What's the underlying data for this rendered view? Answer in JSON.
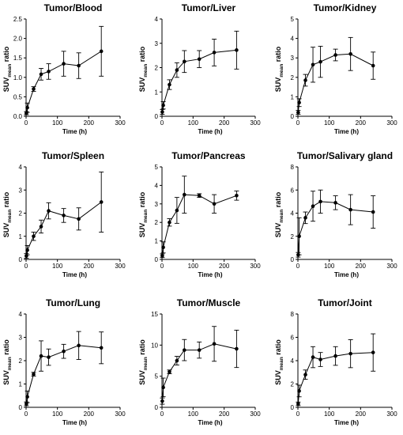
{
  "chart_data": [
    {
      "type": "line",
      "title": "Tumor/Blood",
      "xlabel": "Time (h)",
      "ylabel_main": "SUV",
      "ylabel_sub": "mean",
      "ylabel_tail": " ratio",
      "xlim": [
        0,
        300
      ],
      "ylim": [
        0,
        2.5
      ],
      "xticks": [
        "0",
        "100",
        "200",
        "300"
      ],
      "yticks": [
        "0.0",
        "0.5",
        "1.0",
        "1.5",
        "2.0",
        "2.5"
      ],
      "x": [
        1,
        4,
        24,
        48,
        72,
        120,
        168,
        240
      ],
      "y": [
        0.08,
        0.22,
        0.7,
        1.08,
        1.15,
        1.35,
        1.3,
        1.67
      ],
      "err": [
        0.04,
        0.12,
        0.06,
        0.15,
        0.2,
        0.32,
        0.33,
        0.64
      ]
    },
    {
      "type": "line",
      "title": "Tumor/Liver",
      "xlabel": "Time (h)",
      "ylabel_main": "SUV",
      "ylabel_sub": "mean",
      "ylabel_tail": " ratio",
      "xlim": [
        0,
        300
      ],
      "ylim": [
        0,
        4
      ],
      "xticks": [
        "0",
        "100",
        "200",
        "300"
      ],
      "yticks": [
        "0",
        "1",
        "2",
        "3",
        "4"
      ],
      "x": [
        1,
        4,
        24,
        48,
        72,
        120,
        168,
        240
      ],
      "y": [
        0.18,
        0.45,
        1.3,
        1.9,
        2.25,
        2.35,
        2.62,
        2.72
      ],
      "err": [
        0.1,
        0.15,
        0.2,
        0.3,
        0.45,
        0.35,
        0.55,
        0.78
      ]
    },
    {
      "type": "line",
      "title": "Tumor/Kidney",
      "xlabel": "Time (h)",
      "ylabel_main": "SUV",
      "ylabel_sub": "mean",
      "ylabel_tail": " ratio",
      "xlim": [
        0,
        300
      ],
      "ylim": [
        0,
        5
      ],
      "xticks": [
        "0",
        "100",
        "200",
        "300"
      ],
      "yticks": [
        "0",
        "1",
        "2",
        "3",
        "4",
        "5"
      ],
      "x": [
        1,
        4,
        24,
        48,
        72,
        120,
        168,
        240
      ],
      "y": [
        0.2,
        0.7,
        1.85,
        2.65,
        2.8,
        3.15,
        3.2,
        2.6
      ],
      "err": [
        0.1,
        0.2,
        0.3,
        0.9,
        0.8,
        0.3,
        0.85,
        0.7
      ]
    },
    {
      "type": "line",
      "title": "Tumor/Spleen",
      "xlabel": "Time (h)",
      "ylabel_main": "SUV",
      "ylabel_sub": "mean",
      "ylabel_tail": " ratio",
      "xlim": [
        0,
        300
      ],
      "ylim": [
        0,
        4
      ],
      "xticks": [
        "0",
        "100",
        "200",
        "300"
      ],
      "yticks": [
        "0",
        "1",
        "2",
        "3",
        "4"
      ],
      "x": [
        1,
        4,
        24,
        48,
        72,
        120,
        168,
        240
      ],
      "y": [
        0.15,
        0.4,
        1.0,
        1.42,
        2.1,
        1.9,
        1.75,
        2.48
      ],
      "err": [
        0.1,
        0.2,
        0.18,
        0.28,
        0.35,
        0.3,
        0.48,
        1.3
      ]
    },
    {
      "type": "line",
      "title": "Tumor/Pancreas",
      "xlabel": "Time (h)",
      "ylabel_main": "SUV",
      "ylabel_sub": "mean",
      "ylabel_tail": " ratio",
      "xlim": [
        0,
        300
      ],
      "ylim": [
        0,
        5
      ],
      "xticks": [
        "0",
        "100",
        "200",
        "300"
      ],
      "yticks": [
        "0",
        "1",
        "2",
        "3",
        "4",
        "5"
      ],
      "x": [
        1,
        4,
        24,
        48,
        72,
        120,
        168,
        240
      ],
      "y": [
        0.2,
        0.65,
        2.0,
        2.65,
        3.5,
        3.45,
        3.0,
        3.45
      ],
      "err": [
        0.1,
        0.3,
        0.2,
        0.7,
        1.0,
        0.1,
        0.5,
        0.25
      ]
    },
    {
      "type": "line",
      "title": "Tumor/Salivary gland",
      "xlabel": "Time (h)",
      "ylabel_main": "SUV",
      "ylabel_sub": "mean",
      "ylabel_tail": " ratio",
      "xlim": [
        0,
        300
      ],
      "ylim": [
        0,
        8
      ],
      "xticks": [
        "0",
        "100",
        "200",
        "300"
      ],
      "yticks": [
        "0",
        "2",
        "4",
        "6",
        "8"
      ],
      "x": [
        1,
        4,
        24,
        48,
        72,
        120,
        168,
        240
      ],
      "y": [
        0.4,
        2.0,
        3.6,
        4.6,
        5.0,
        4.9,
        4.3,
        4.1
      ],
      "err": [
        0.2,
        1.6,
        0.5,
        1.3,
        1.0,
        0.6,
        1.3,
        1.4
      ]
    },
    {
      "type": "line",
      "title": "Tumor/Lung",
      "xlabel": "Time (h)",
      "ylabel_main": "SUV",
      "ylabel_sub": "mean",
      "ylabel_tail": " ratio",
      "xlim": [
        0,
        300
      ],
      "ylim": [
        0,
        4
      ],
      "xticks": [
        "0",
        "100",
        "200",
        "300"
      ],
      "yticks": [
        "0",
        "1",
        "2",
        "3",
        "4"
      ],
      "x": [
        1,
        4,
        24,
        48,
        72,
        120,
        168,
        240
      ],
      "y": [
        0.15,
        0.45,
        1.42,
        2.2,
        2.15,
        2.4,
        2.65,
        2.55
      ],
      "err": [
        0.08,
        0.25,
        0.08,
        0.65,
        0.35,
        0.3,
        0.6,
        0.68
      ]
    },
    {
      "type": "line",
      "title": "Tumor/Muscle",
      "xlabel": "Time (h)",
      "ylabel_main": "SUV",
      "ylabel_sub": "mean",
      "ylabel_tail": " ratio",
      "xlim": [
        0,
        300
      ],
      "ylim": [
        0,
        15
      ],
      "xticks": [
        "0",
        "100",
        "200",
        "300"
      ],
      "yticks": [
        "0",
        "5",
        "10",
        "15"
      ],
      "x": [
        1,
        4,
        24,
        48,
        72,
        120,
        168,
        240
      ],
      "y": [
        1.0,
        3.2,
        5.7,
        7.5,
        9.2,
        9.2,
        10.2,
        9.4
      ],
      "err": [
        0.5,
        1.5,
        0.3,
        0.7,
        1.7,
        1.3,
        2.8,
        3.0
      ]
    },
    {
      "type": "line",
      "title": "Tumor/Joint",
      "xlabel": "Time (h)",
      "ylabel_main": "SUV",
      "ylabel_sub": "mean",
      "ylabel_tail": " ratio",
      "xlim": [
        0,
        300
      ],
      "ylim": [
        0,
        8
      ],
      "xticks": [
        "0",
        "100",
        "200",
        "300"
      ],
      "yticks": [
        "0",
        "2",
        "4",
        "6",
        "8"
      ],
      "x": [
        1,
        4,
        24,
        48,
        72,
        120,
        168,
        240
      ],
      "y": [
        0.3,
        1.4,
        2.8,
        4.3,
        4.1,
        4.4,
        4.6,
        4.7
      ],
      "err": [
        0.15,
        0.5,
        0.4,
        0.9,
        0.6,
        0.8,
        1.2,
        1.6
      ]
    }
  ]
}
